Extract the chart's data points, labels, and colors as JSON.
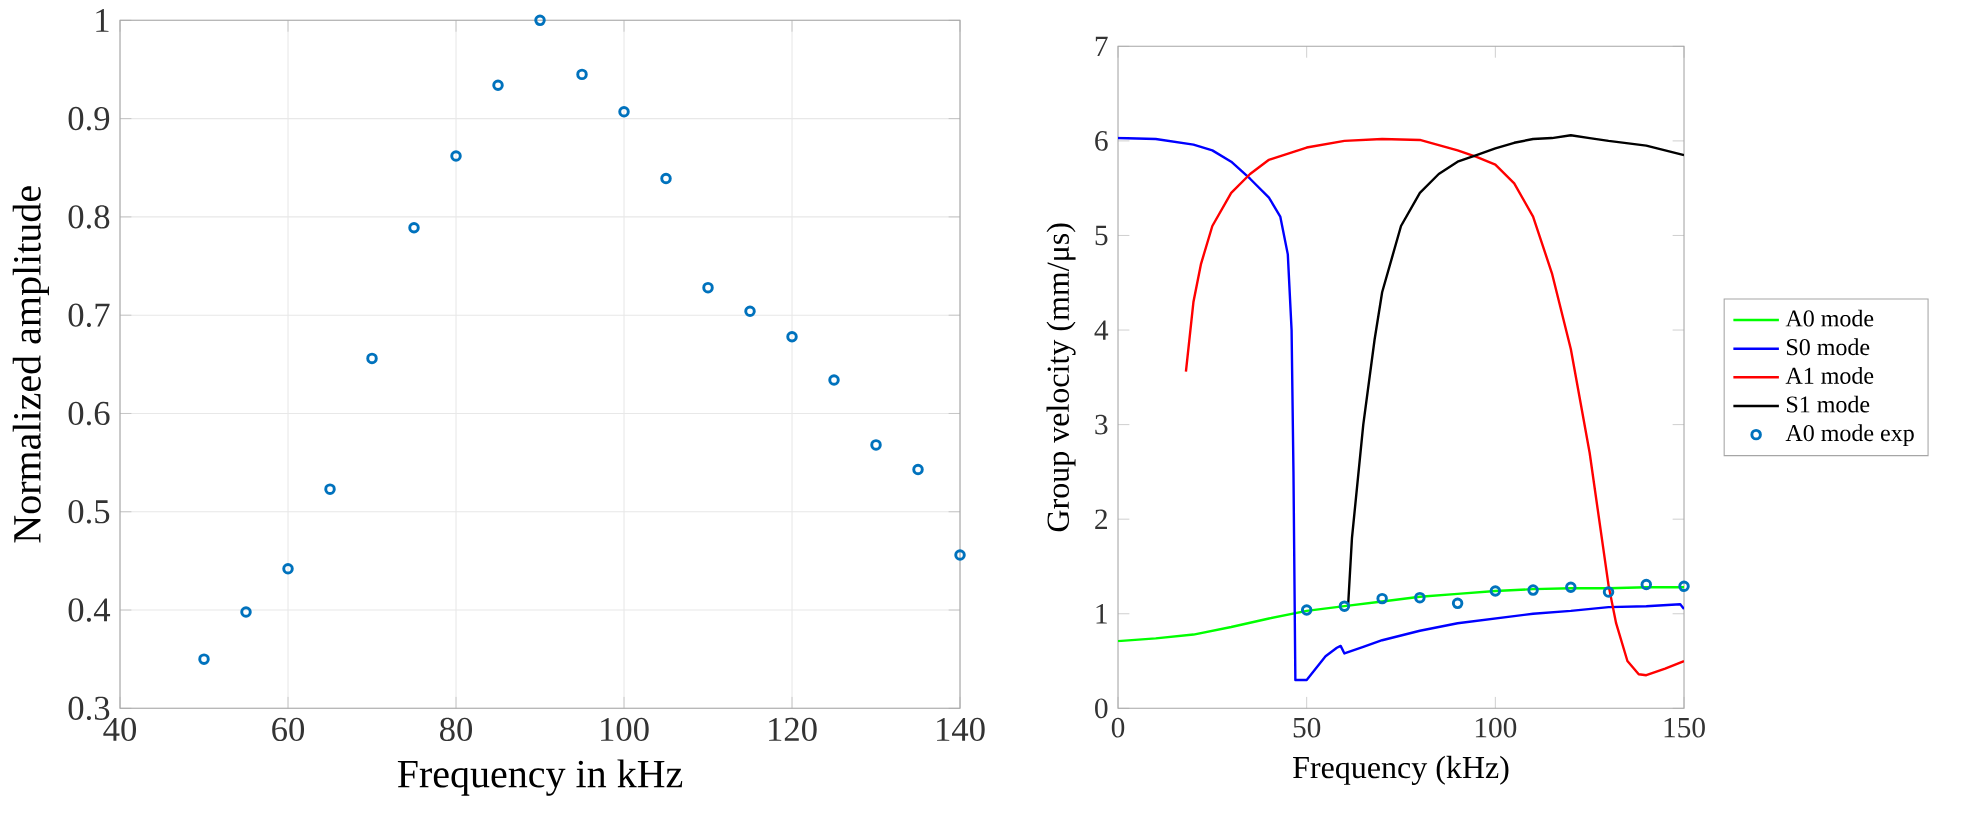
{
  "chart_data": [
    {
      "type": "scatter",
      "xlabel": "Frequency in kHz",
      "ylabel": "Normalized amplitude",
      "x": [
        50,
        55,
        60,
        65,
        70,
        75,
        80,
        85,
        90,
        95,
        100,
        105,
        110,
        115,
        120,
        125,
        130,
        135,
        140
      ],
      "values": [
        0.35,
        0.398,
        0.442,
        0.523,
        0.656,
        0.789,
        0.862,
        0.934,
        1.0,
        0.945,
        0.907,
        0.839,
        0.728,
        0.704,
        0.678,
        0.634,
        0.568,
        0.543,
        0.456
      ],
      "color": "#0072bd",
      "marker": "circle",
      "grid": true,
      "xlim": [
        40,
        140
      ],
      "xticks": [
        40,
        60,
        80,
        100,
        120,
        140
      ],
      "ylim": [
        0.3,
        1
      ],
      "yticks": [
        0.3,
        0.4,
        0.5,
        0.6,
        0.7,
        0.8,
        0.9,
        1
      ]
    },
    {
      "type": "line",
      "xlabel": "Frequency (kHz)",
      "ylabel": "Group velocity (mm/μs)",
      "xlim": [
        0,
        150
      ],
      "xticks": [
        0,
        50,
        100,
        150
      ],
      "ylim": [
        0,
        7
      ],
      "yticks": [
        0,
        1,
        2,
        3,
        4,
        5,
        6,
        7
      ],
      "legend": "right",
      "series": [
        {
          "name": "A0 mode",
          "color": "#00ff00",
          "type": "line",
          "marker": "none",
          "x": [
            0,
            10,
            20,
            30,
            40,
            50,
            60,
            70,
            80,
            90,
            100,
            110,
            120,
            130,
            140,
            150
          ],
          "values": [
            0.71,
            0.74,
            0.78,
            0.86,
            0.95,
            1.03,
            1.08,
            1.13,
            1.18,
            1.21,
            1.24,
            1.26,
            1.27,
            1.27,
            1.28,
            1.28
          ]
        },
        {
          "name": "S0 mode",
          "color": "#0000ff",
          "type": "line",
          "marker": "none",
          "x": [
            0,
            10,
            20,
            25,
            30,
            35,
            40,
            43,
            45,
            46,
            46.5,
            47,
            48,
            50,
            52,
            55,
            58,
            59,
            60,
            65,
            70,
            80,
            90,
            100,
            110,
            120,
            130,
            140,
            149,
            150
          ],
          "values": [
            6.03,
            6.02,
            5.96,
            5.9,
            5.78,
            5.6,
            5.4,
            5.2,
            4.8,
            4.0,
            2.5,
            0.3,
            0.3,
            0.3,
            0.4,
            0.55,
            0.64,
            0.66,
            0.58,
            0.65,
            0.72,
            0.82,
            0.9,
            0.95,
            1.0,
            1.03,
            1.07,
            1.08,
            1.1,
            1.05
          ]
        },
        {
          "name": "A1 mode",
          "color": "#ff0000",
          "type": "line",
          "marker": "none",
          "x": [
            18,
            20,
            22,
            25,
            30,
            35,
            40,
            50,
            60,
            70,
            80,
            90,
            95,
            100,
            105,
            110,
            115,
            120,
            125,
            130,
            132,
            135,
            138,
            140,
            145,
            150
          ],
          "values": [
            3.56,
            4.3,
            4.7,
            5.1,
            5.45,
            5.65,
            5.8,
            5.93,
            6.0,
            6.02,
            6.01,
            5.9,
            5.83,
            5.75,
            5.55,
            5.2,
            4.6,
            3.8,
            2.7,
            1.3,
            0.9,
            0.5,
            0.36,
            0.35,
            0.42,
            0.5
          ]
        },
        {
          "name": "S1 mode",
          "color": "#000000",
          "type": "line",
          "marker": "none",
          "x": [
            61,
            62,
            65,
            68,
            70,
            75,
            80,
            85,
            90,
            95,
            100,
            105,
            110,
            115,
            120,
            125,
            130,
            140,
            150
          ],
          "values": [
            1.1,
            1.8,
            3.0,
            3.9,
            4.4,
            5.1,
            5.45,
            5.65,
            5.78,
            5.85,
            5.92,
            5.98,
            6.02,
            6.03,
            6.06,
            6.03,
            6.0,
            5.95,
            5.85
          ]
        },
        {
          "name": "A0 mode exp",
          "color": "#0072bd",
          "type": "scatter",
          "marker": "circle",
          "x": [
            50,
            60,
            70,
            80,
            90,
            100,
            110,
            120,
            130,
            140,
            150
          ],
          "values": [
            1.04,
            1.08,
            1.16,
            1.17,
            1.11,
            1.24,
            1.25,
            1.28,
            1.23,
            1.31,
            1.29
          ]
        }
      ]
    }
  ]
}
